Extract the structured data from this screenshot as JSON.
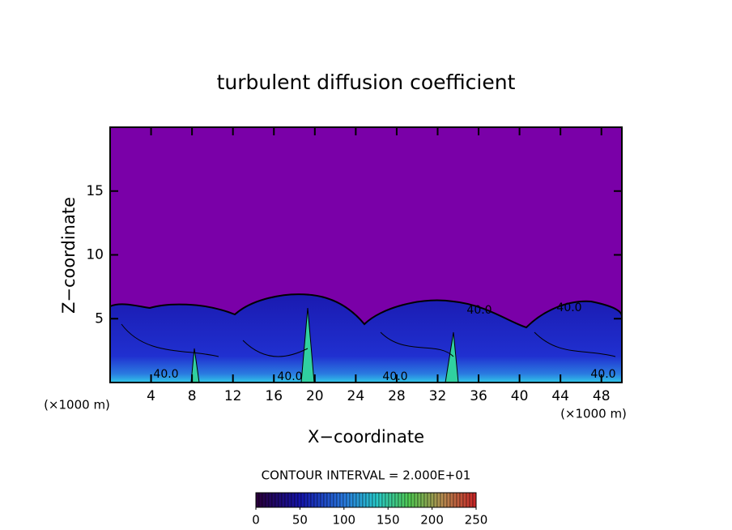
{
  "chart_data": {
    "type": "heatmap",
    "title": "turbulent diffusion coefficient",
    "x_label": "X−coordinate",
    "y_label": "Z−coordinate",
    "x_unit": "(×1000 m)",
    "x_unit_right": "(×1000 m)",
    "xlim": [
      0,
      50
    ],
    "xticks": [
      4,
      8,
      12,
      16,
      20,
      24,
      28,
      32,
      36,
      40,
      44,
      48
    ],
    "ylim": [
      0,
      20
    ],
    "yticks": [
      5,
      10,
      15
    ],
    "contour_interval": "CONTOUR INTERVAL = 2.000E+01",
    "contour_labels": [
      "40.0",
      "40.0",
      "40.0",
      "40.0",
      "40.0",
      "40.0"
    ],
    "colorbar": {
      "lim": [
        0,
        250
      ],
      "ticks": [
        0,
        50,
        100,
        150,
        200,
        250
      ]
    }
  }
}
